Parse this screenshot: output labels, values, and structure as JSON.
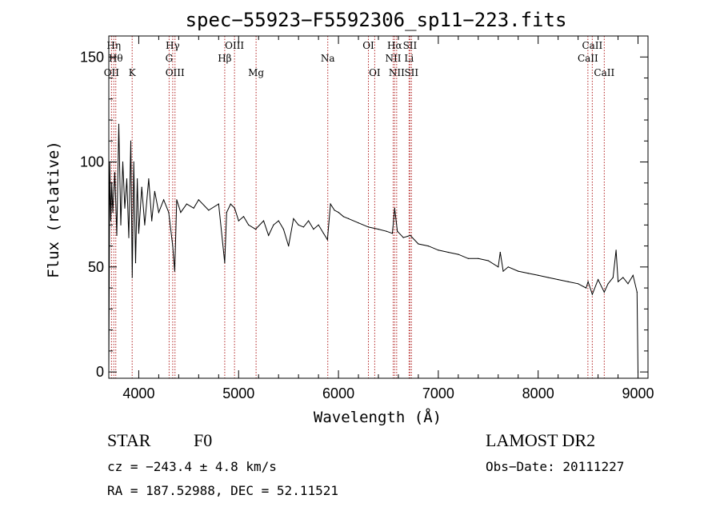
{
  "chart_data": {
    "type": "line",
    "title": "spec−55923−F5592306_sp11−223.fits",
    "xlabel": "Wavelength (Å)",
    "ylabel": "Flux (relative)",
    "xlim": [
      3700,
      9100
    ],
    "ylim": [
      -3,
      160
    ],
    "x_ticks": [
      4000,
      5000,
      6000,
      7000,
      8000,
      9000
    ],
    "y_ticks": [
      0,
      50,
      100,
      150
    ],
    "grid": false,
    "line_color": "#000000",
    "marker_color": "#b22222",
    "series": [
      {
        "points": [
          [
            3700,
            0
          ],
          [
            3710,
            100
          ],
          [
            3720,
            72
          ],
          [
            3730,
            90
          ],
          [
            3740,
            76
          ],
          [
            3760,
            95
          ],
          [
            3780,
            65
          ],
          [
            3800,
            118
          ],
          [
            3820,
            70
          ],
          [
            3840,
            100
          ],
          [
            3860,
            78
          ],
          [
            3880,
            92
          ],
          [
            3900,
            64
          ],
          [
            3920,
            110
          ],
          [
            3935,
            45
          ],
          [
            3950,
            100
          ],
          [
            3968,
            52
          ],
          [
            3985,
            92
          ],
          [
            4000,
            66
          ],
          [
            4030,
            88
          ],
          [
            4060,
            70
          ],
          [
            4100,
            92
          ],
          [
            4130,
            72
          ],
          [
            4160,
            86
          ],
          [
            4200,
            76
          ],
          [
            4250,
            82
          ],
          [
            4300,
            76
          ],
          [
            4340,
            60
          ],
          [
            4360,
            48
          ],
          [
            4380,
            82
          ],
          [
            4420,
            76
          ],
          [
            4480,
            80
          ],
          [
            4550,
            78
          ],
          [
            4600,
            82
          ],
          [
            4700,
            77
          ],
          [
            4800,
            80
          ],
          [
            4861,
            52
          ],
          [
            4880,
            76
          ],
          [
            4920,
            80
          ],
          [
            4960,
            78
          ],
          [
            5000,
            72
          ],
          [
            5050,
            74
          ],
          [
            5100,
            70
          ],
          [
            5170,
            68
          ],
          [
            5250,
            72
          ],
          [
            5300,
            65
          ],
          [
            5350,
            70
          ],
          [
            5400,
            72
          ],
          [
            5450,
            68
          ],
          [
            5500,
            60
          ],
          [
            5550,
            73
          ],
          [
            5600,
            70
          ],
          [
            5650,
            69
          ],
          [
            5700,
            72
          ],
          [
            5750,
            68
          ],
          [
            5800,
            70
          ],
          [
            5850,
            66
          ],
          [
            5890,
            63
          ],
          [
            5920,
            80
          ],
          [
            5960,
            77
          ],
          [
            6000,
            76
          ],
          [
            6050,
            74
          ],
          [
            6100,
            73
          ],
          [
            6200,
            71
          ],
          [
            6300,
            69
          ],
          [
            6400,
            68
          ],
          [
            6480,
            67
          ],
          [
            6540,
            66
          ],
          [
            6563,
            78
          ],
          [
            6590,
            67
          ],
          [
            6650,
            64
          ],
          [
            6720,
            65
          ],
          [
            6800,
            61
          ],
          [
            6900,
            60
          ],
          [
            7000,
            58
          ],
          [
            7100,
            57
          ],
          [
            7200,
            56
          ],
          [
            7300,
            54
          ],
          [
            7400,
            54
          ],
          [
            7500,
            53
          ],
          [
            7600,
            50
          ],
          [
            7620,
            57
          ],
          [
            7650,
            48
          ],
          [
            7700,
            50
          ],
          [
            7800,
            48
          ],
          [
            7900,
            47
          ],
          [
            8000,
            46
          ],
          [
            8100,
            45
          ],
          [
            8200,
            44
          ],
          [
            8300,
            43
          ],
          [
            8400,
            42
          ],
          [
            8480,
            40
          ],
          [
            8500,
            43
          ],
          [
            8542,
            37
          ],
          [
            8600,
            44
          ],
          [
            8662,
            38
          ],
          [
            8700,
            42
          ],
          [
            8750,
            45
          ],
          [
            8780,
            58
          ],
          [
            8800,
            43
          ],
          [
            8850,
            45
          ],
          [
            8900,
            42
          ],
          [
            8950,
            46
          ],
          [
            8990,
            38
          ],
          [
            9000,
            0
          ]
        ]
      }
    ],
    "line_markers": [
      {
        "wave": 3727,
        "label": "OII",
        "row": 3
      },
      {
        "wave": 3750,
        "label": "Hη",
        "row": 1
      },
      {
        "wave": 3770,
        "label": "Hθ",
        "row": 2
      },
      {
        "wave": 3934,
        "label": "K",
        "row": 3
      },
      {
        "wave": 4304,
        "label": "G",
        "row": 2
      },
      {
        "wave": 4340,
        "label": "Hγ",
        "row": 1
      },
      {
        "wave": 4363,
        "label": "OIII",
        "row": 3
      },
      {
        "wave": 4861,
        "label": "Hβ",
        "row": 2
      },
      {
        "wave": 4959,
        "label": "OIII",
        "row": 1
      },
      {
        "wave": 5175,
        "label": "Mg",
        "row": 3
      },
      {
        "wave": 5893,
        "label": "Na",
        "row": 2
      },
      {
        "wave": 6300,
        "label": "OI",
        "row": 1
      },
      {
        "wave": 6363,
        "label": "OI",
        "row": 3
      },
      {
        "wave": 6548,
        "label": "NII",
        "row": 2
      },
      {
        "wave": 6563,
        "label": "Hα",
        "row": 1
      },
      {
        "wave": 6583,
        "label": "NII",
        "row": 3
      },
      {
        "wave": 6707,
        "label": "Li",
        "row": 2
      },
      {
        "wave": 6716,
        "label": "SII",
        "row": 1
      },
      {
        "wave": 6731,
        "label": "SII",
        "row": 3
      },
      {
        "wave": 8498,
        "label": "CaII",
        "row": 2
      },
      {
        "wave": 8542,
        "label": "CaII",
        "row": 1
      },
      {
        "wave": 8662,
        "label": "CaII",
        "row": 3
      }
    ]
  },
  "info": {
    "star_type": "STAR",
    "subclass": "F0",
    "survey": "LAMOST DR2",
    "cz": "cz = −243.4 ± 4.8 km/s",
    "obs_date": "Obs−Date: 20111227",
    "coords": "RA = 187.52988, DEC =  52.11521"
  }
}
